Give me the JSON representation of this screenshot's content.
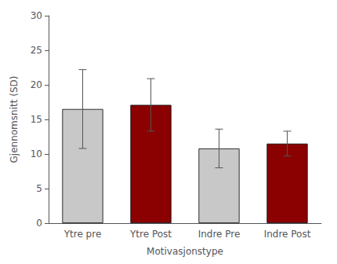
{
  "chart_data": {
    "type": "bar",
    "xlabel": "Motivasjonstype",
    "ylabel": "Gjennomsnitt (SD)",
    "categories": [
      "Ytre pre",
      "Ytre Post",
      "Indre Pre",
      "Indre Post"
    ],
    "values": [
      16.5,
      17.1,
      10.8,
      11.5
    ],
    "errors": [
      5.7,
      3.8,
      2.8,
      1.8
    ],
    "colors": [
      "#c8c8c8",
      "#8b0000",
      "#c8c8c8",
      "#8b0000"
    ],
    "ylim": [
      0,
      30
    ],
    "yticks": [
      0,
      5,
      10,
      15,
      20,
      25,
      30
    ],
    "grid": false
  }
}
